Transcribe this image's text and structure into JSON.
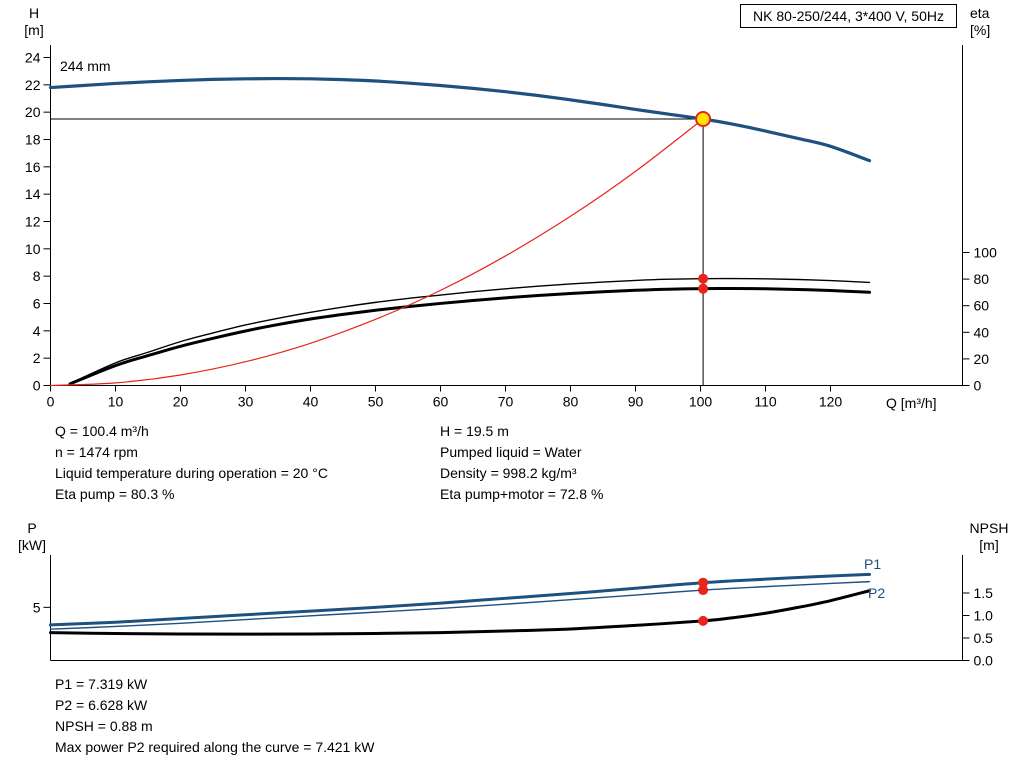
{
  "title_box": "NK 80-250/244, 3*400 V, 50Hz",
  "labels": {
    "h_axis_1": "H",
    "h_axis_2": "[m]",
    "eta_axis_1": "eta",
    "eta_axis_2": "[%]",
    "p_axis_1": "P",
    "p_axis_2": "[kW]",
    "npsh_axis_1": "NPSH",
    "npsh_axis_2": "[m]",
    "q_axis": "Q [m³/h]",
    "impeller": "244 mm",
    "p1": "P1",
    "p2": "P2"
  },
  "info": {
    "left": [
      "Q = 100.4 m³/h",
      "n = 1474 rpm",
      "Liquid temperature during operation = 20 °C",
      "Eta pump = 80.3 %"
    ],
    "right": [
      "H = 19.5 m",
      "Pumped liquid = Water",
      "Density = 998.2 kg/m³",
      "Eta pump+motor = 72.8 %"
    ],
    "bottom": [
      "P1 = 7.319 kW",
      "P2 = 6.628 kW",
      "NPSH = 0.88 m",
      "Max power P2 required along the curve = 7.421 kW"
    ]
  },
  "colors": {
    "blue": "#1e5180",
    "red": "#e8251c",
    "yellow": "#ffe400",
    "black": "#000000"
  },
  "chart_data": [
    {
      "type": "line",
      "name": "performance-chart",
      "title": "NK 80-250/244, 3*400 V, 50Hz",
      "x": {
        "label": "Q [m³/h]",
        "min": 0,
        "max": 140,
        "ticks": {
          "values": [
            0,
            10,
            20,
            30,
            40,
            50,
            60,
            70,
            80,
            90,
            100,
            110,
            120
          ],
          "labels": [
            "0",
            "10",
            "20",
            "30",
            "40",
            "50",
            "60",
            "70",
            "80",
            "90",
            "100",
            "110",
            "120"
          ]
        }
      },
      "y_left": {
        "label": "H [m]",
        "min": 0,
        "max": 24,
        "ticks": {
          "values": [
            0,
            2,
            4,
            6,
            8,
            10,
            12,
            14,
            16,
            18,
            20,
            22,
            24
          ],
          "labels": [
            "0",
            "2",
            "4",
            "6",
            "8",
            "10",
            "12",
            "14",
            "16",
            "18",
            "20",
            "22",
            "24"
          ]
        }
      },
      "y_right": {
        "label": "eta [%]",
        "min": 0,
        "max": 100,
        "ticks": {
          "values": [
            0,
            20,
            40,
            60,
            80,
            100
          ],
          "labels": [
            "0",
            "20",
            "40",
            "60",
            "80",
            "100"
          ]
        }
      },
      "series": [
        {
          "name": "head-244mm",
          "axis": "left",
          "color": "#1e5180",
          "width": 3.2,
          "points": [
            [
              0,
              21.8
            ],
            [
              5,
              21.95
            ],
            [
              10,
              22.1
            ],
            [
              15,
              22.22
            ],
            [
              20,
              22.32
            ],
            [
              25,
              22.4
            ],
            [
              30,
              22.44
            ],
            [
              35,
              22.46
            ],
            [
              40,
              22.44
            ],
            [
              45,
              22.38
            ],
            [
              50,
              22.28
            ],
            [
              55,
              22.13
            ],
            [
              60,
              21.95
            ],
            [
              65,
              21.74
            ],
            [
              70,
              21.5
            ],
            [
              75,
              21.22
            ],
            [
              80,
              20.9
            ],
            [
              85,
              20.56
            ],
            [
              90,
              20.2
            ],
            [
              95,
              19.86
            ],
            [
              100.4,
              19.5
            ],
            [
              105,
              19.12
            ],
            [
              110,
              18.62
            ],
            [
              115,
              18.08
            ],
            [
              120,
              17.5
            ],
            [
              126,
              16.45
            ]
          ]
        },
        {
          "name": "eta-pump",
          "axis": "right",
          "color": "#000000",
          "width": 1.4,
          "points": [
            [
              3,
              1.5
            ],
            [
              10,
              17
            ],
            [
              15,
              25
            ],
            [
              20,
              33
            ],
            [
              25,
              39.5
            ],
            [
              30,
              45.5
            ],
            [
              35,
              50.5
            ],
            [
              40,
              55
            ],
            [
              45,
              59
            ],
            [
              50,
              62.5
            ],
            [
              55,
              65.5
            ],
            [
              60,
              68
            ],
            [
              65,
              70.5
            ],
            [
              70,
              72.7
            ],
            [
              75,
              74.7
            ],
            [
              80,
              76.4
            ],
            [
              85,
              77.8
            ],
            [
              90,
              79
            ],
            [
              95,
              79.9
            ],
            [
              100.4,
              80.3
            ],
            [
              105,
              80.4
            ],
            [
              110,
              80.2
            ],
            [
              115,
              79.7
            ],
            [
              120,
              78.9
            ],
            [
              126,
              77.5
            ]
          ]
        },
        {
          "name": "eta-pump-motor",
          "axis": "right",
          "color": "#000000",
          "width": 3,
          "points": [
            [
              3,
              1.2
            ],
            [
              10,
              15
            ],
            [
              15,
              22.5
            ],
            [
              20,
              29.5
            ],
            [
              25,
              35.5
            ],
            [
              30,
              41
            ],
            [
              35,
              45.8
            ],
            [
              40,
              50
            ],
            [
              45,
              53.5
            ],
            [
              50,
              56.6
            ],
            [
              55,
              59.3
            ],
            [
              60,
              61.7
            ],
            [
              65,
              63.9
            ],
            [
              70,
              65.9
            ],
            [
              75,
              67.7
            ],
            [
              80,
              69.2
            ],
            [
              85,
              70.5
            ],
            [
              90,
              71.6
            ],
            [
              95,
              72.4
            ],
            [
              100.4,
              72.8
            ],
            [
              105,
              72.9
            ],
            [
              110,
              72.7
            ],
            [
              115,
              72.2
            ],
            [
              120,
              71.4
            ],
            [
              126,
              70.1
            ]
          ]
        },
        {
          "name": "system-curve",
          "axis": "left",
          "color": "#e8251c",
          "width": 1.2,
          "points": [
            [
              0,
              0
            ],
            [
              10,
              0.19
            ],
            [
              20,
              0.77
            ],
            [
              30,
              1.74
            ],
            [
              40,
              3.09
            ],
            [
              50,
              4.84
            ],
            [
              60,
              6.96
            ],
            [
              70,
              9.48
            ],
            [
              80,
              12.38
            ],
            [
              90,
              15.67
            ],
            [
              100.4,
              19.5
            ]
          ]
        }
      ],
      "duty_point": {
        "q": 100.4,
        "h": 19.5
      },
      "markers": [
        {
          "q": 100.4,
          "v": 80.3,
          "axis": "right"
        },
        {
          "q": 100.4,
          "v": 72.8,
          "axis": "right"
        }
      ]
    },
    {
      "type": "line",
      "name": "power-npsh-chart",
      "x": {
        "label": "",
        "min": 0,
        "max": 140,
        "ticks": null
      },
      "y_left": {
        "label": "P [kW]",
        "min": 0,
        "ticks": {
          "values": [
            5
          ],
          "labels": [
            "5"
          ]
        }
      },
      "y_right": {
        "label": "NPSH [m]",
        "min": 0,
        "ticks": {
          "values": [
            0,
            0.5,
            1,
            1.5
          ],
          "labels": [
            "0.0",
            "0.5",
            "1.0",
            "1.5"
          ]
        }
      },
      "series": [
        {
          "name": "p1",
          "axis": "left",
          "color": "#1e5180",
          "width": 3,
          "points": [
            [
              0,
              3.35
            ],
            [
              10,
              3.6
            ],
            [
              20,
              3.95
            ],
            [
              30,
              4.3
            ],
            [
              40,
              4.65
            ],
            [
              50,
              5.0
            ],
            [
              60,
              5.4
            ],
            [
              70,
              5.85
            ],
            [
              80,
              6.3
            ],
            [
              90,
              6.8
            ],
            [
              100.4,
              7.319
            ],
            [
              110,
              7.65
            ],
            [
              120,
              7.95
            ],
            [
              126,
              8.1
            ]
          ]
        },
        {
          "name": "p2",
          "axis": "left",
          "color": "#1e5180",
          "width": 1.4,
          "points": [
            [
              0,
              2.95
            ],
            [
              10,
              3.2
            ],
            [
              20,
              3.5
            ],
            [
              30,
              3.85
            ],
            [
              40,
              4.2
            ],
            [
              50,
              4.55
            ],
            [
              60,
              4.9
            ],
            [
              70,
              5.3
            ],
            [
              80,
              5.72
            ],
            [
              90,
              6.16
            ],
            [
              100.4,
              6.628
            ],
            [
              110,
              6.95
            ],
            [
              120,
              7.25
            ],
            [
              126,
              7.421
            ]
          ]
        },
        {
          "name": "npsh",
          "axis": "right",
          "color": "#000000",
          "width": 3,
          "points": [
            [
              0,
              0.62
            ],
            [
              10,
              0.6
            ],
            [
              20,
              0.59
            ],
            [
              30,
              0.585
            ],
            [
              40,
              0.59
            ],
            [
              50,
              0.6
            ],
            [
              60,
              0.62
            ],
            [
              70,
              0.655
            ],
            [
              80,
              0.7
            ],
            [
              90,
              0.78
            ],
            [
              100.4,
              0.88
            ],
            [
              105,
              0.95
            ],
            [
              110,
              1.05
            ],
            [
              115,
              1.18
            ],
            [
              120,
              1.33
            ],
            [
              126,
              1.55
            ]
          ]
        }
      ],
      "markers": [
        {
          "q": 100.4,
          "v": 7.319,
          "axis": "left"
        },
        {
          "q": 100.4,
          "v": 6.628,
          "axis": "left"
        },
        {
          "q": 100.4,
          "v": 0.88,
          "axis": "right"
        }
      ]
    }
  ]
}
